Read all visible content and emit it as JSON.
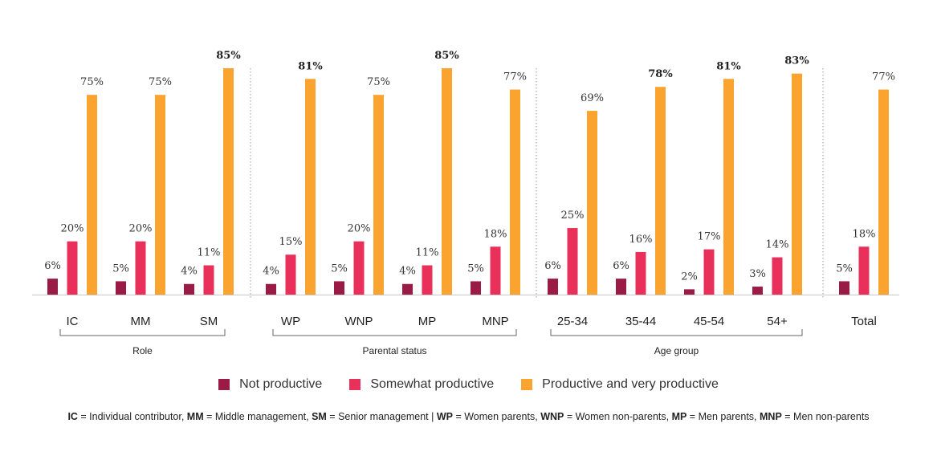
{
  "chart_data": {
    "type": "bar",
    "series": [
      {
        "name": "Not productive",
        "color": "#9B1B47"
      },
      {
        "name": "Somewhat productive",
        "color": "#E8305A"
      },
      {
        "name": "Productive and very productive",
        "color": "#FAA42F"
      }
    ],
    "groups": [
      {
        "label": "Role",
        "categories": [
          {
            "label": "IC",
            "values": [
              6,
              20,
              75
            ],
            "bold": [
              false,
              false,
              false
            ]
          },
          {
            "label": "MM",
            "values": [
              5,
              20,
              75
            ],
            "bold": [
              false,
              false,
              false
            ]
          },
          {
            "label": "SM",
            "values": [
              4,
              11,
              85
            ],
            "bold": [
              false,
              false,
              true
            ]
          }
        ]
      },
      {
        "label": "Parental status",
        "categories": [
          {
            "label": "WP",
            "values": [
              4,
              15,
              81
            ],
            "bold": [
              false,
              false,
              true
            ]
          },
          {
            "label": "WNP",
            "values": [
              5,
              20,
              75
            ],
            "bold": [
              false,
              false,
              false
            ]
          },
          {
            "label": "MP",
            "values": [
              4,
              11,
              85
            ],
            "bold": [
              false,
              false,
              true
            ]
          },
          {
            "label": "MNP",
            "values": [
              5,
              18,
              77
            ],
            "bold": [
              false,
              false,
              false
            ]
          }
        ]
      },
      {
        "label": "Age group",
        "categories": [
          {
            "label": "25-34",
            "values": [
              6,
              25,
              69
            ],
            "bold": [
              false,
              false,
              false
            ]
          },
          {
            "label": "35-44",
            "values": [
              6,
              16,
              78
            ],
            "bold": [
              false,
              false,
              true
            ]
          },
          {
            "label": "45-54",
            "values": [
              2,
              17,
              81
            ],
            "bold": [
              false,
              false,
              true
            ]
          },
          {
            "label": "54+",
            "values": [
              3,
              14,
              83
            ],
            "bold": [
              false,
              false,
              true
            ]
          }
        ]
      },
      {
        "label": "",
        "categories": [
          {
            "label": "Total",
            "values": [
              5,
              18,
              77
            ],
            "bold": [
              false,
              false,
              false
            ]
          }
        ]
      }
    ],
    "value_suffix": "%",
    "ylim": [
      0,
      85
    ]
  },
  "legend": [
    {
      "label": "Not productive",
      "color": "#9B1B47"
    },
    {
      "label": "Somewhat productive",
      "color": "#E8305A"
    },
    {
      "label": "Productive and very productive",
      "color": "#FAA42F"
    }
  ],
  "footnote": [
    {
      "b": "IC",
      "t": " = Individual contributor,  "
    },
    {
      "b": "MM",
      "t": " = Middle management, "
    },
    {
      "b": "SM",
      "t": " = Senior management | "
    },
    {
      "b": "WP",
      "t": " = Women parents, "
    },
    {
      "b": "WNP",
      "t": " = Women non-parents, "
    },
    {
      "b": "MP",
      "t": " = Men parents, "
    },
    {
      "b": "MNP",
      "t": " = Men non-parents"
    }
  ]
}
